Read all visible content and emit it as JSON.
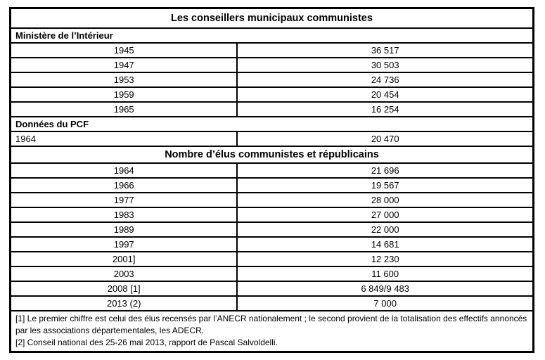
{
  "table": {
    "title": "Les conseillers municipaux communistes",
    "ministere": {
      "label": "Ministère de l’Intérieur",
      "rows": [
        {
          "year": "1945",
          "value": "36 517"
        },
        {
          "year": "1947",
          "value": "30 503"
        },
        {
          "year": "1953",
          "value": "24 736"
        },
        {
          "year": "1959",
          "value": "20 454"
        },
        {
          "year": "1965",
          "value": "16 254"
        }
      ]
    },
    "pcf": {
      "label": "Données du PCF",
      "rows": [
        {
          "year": "1964",
          "value": "20 470"
        }
      ]
    },
    "elus": {
      "title": "Nombre d’élus communistes et républicains",
      "rows": [
        {
          "year": "1964",
          "value": "21 696"
        },
        {
          "year": "1966",
          "value": "19 567"
        },
        {
          "year": "1977",
          "value": "28 000"
        },
        {
          "year": "1983",
          "value": "27 000"
        },
        {
          "year": "1989",
          "value": "22 000"
        },
        {
          "year": "1997",
          "value": "14 681"
        },
        {
          "year": "2001]",
          "value": "12 230"
        },
        {
          "year": "2003",
          "value": "11 600"
        },
        {
          "year": "2008 [1]",
          "value": "6 849/9 483"
        },
        {
          "year": "2013 (2)",
          "value": "7 000"
        }
      ]
    },
    "footnotes": [
      "[1] Le premier chiffre est celui des élus recensés par l’ANECR nationalement ; le second provient de la totalisation des effectifs annoncés par les associations départementales, les ADECR.",
      "[2] Conseil national des 25-26 mai 2013, rapport de Pascal Salvoldelli."
    ]
  }
}
